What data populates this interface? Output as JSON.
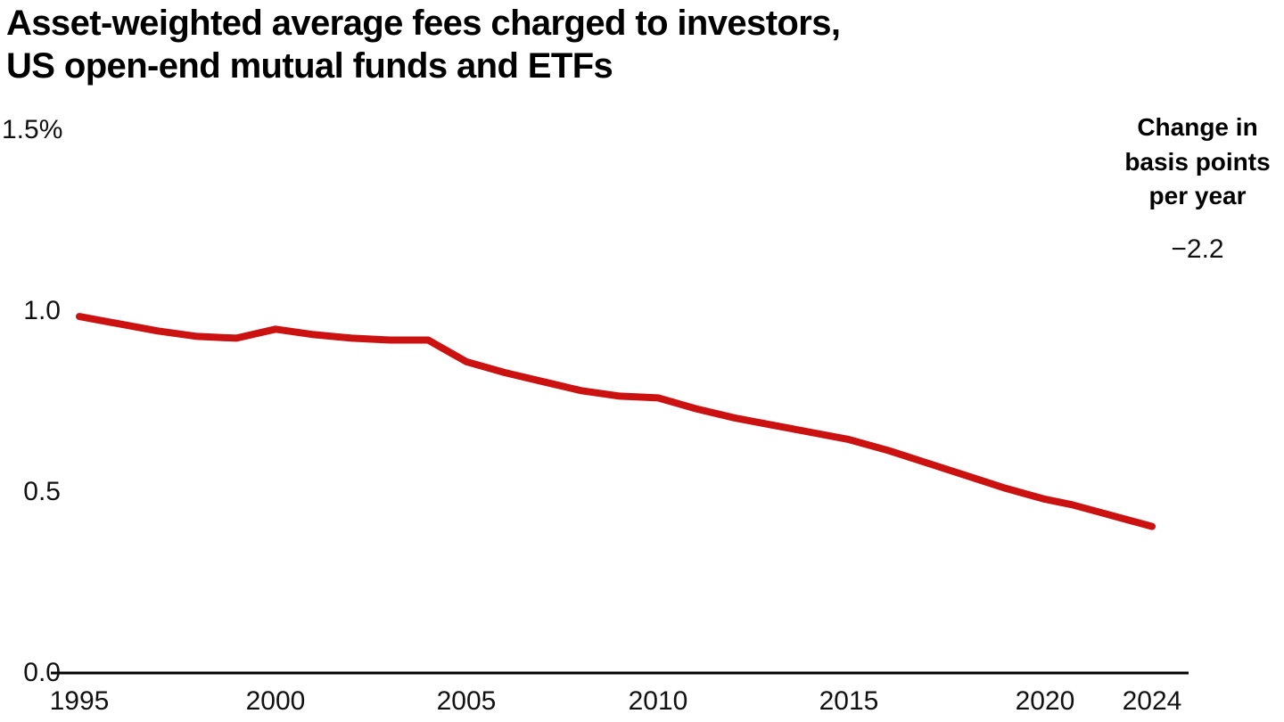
{
  "header": {
    "title": "Asset-weighted average fees charged to investors,\nUS open-end mutual funds and ETFs"
  },
  "annotation": {
    "heading": "Change in\nbasis points\nper year",
    "value": "−2.2"
  },
  "chart_data": {
    "type": "line",
    "title": "Asset-weighted average fees charged to investors, US open-end mutual funds and ETFs",
    "units": "% of assets",
    "xlim": [
      1995,
      2024
    ],
    "ylim": [
      0,
      1.5
    ],
    "grid": false,
    "legend_position": "none",
    "line_color": "#cc1111",
    "axis_color": "#000000",
    "x": [
      1995,
      1996,
      1997,
      1998,
      1999,
      2000,
      2001,
      2002,
      2003,
      2004,
      2005,
      2006,
      2007,
      2008,
      2009,
      2010,
      2011,
      2012,
      2013,
      2014,
      2015,
      2016,
      2017,
      2018,
      2019,
      2020,
      2021,
      2022,
      2023,
      2024
    ],
    "series": [
      {
        "name": "Asset-weighted average fee",
        "values": [
          0.985,
          0.965,
          0.945,
          0.93,
          0.925,
          0.95,
          0.935,
          0.925,
          0.92,
          0.92,
          0.86,
          0.83,
          0.805,
          0.78,
          0.765,
          0.76,
          0.73,
          0.705,
          0.685,
          0.665,
          0.645,
          0.615,
          0.58,
          0.545,
          0.51,
          0.48,
          0.465,
          0.445,
          0.425,
          0.405
        ]
      }
    ],
    "x_ticks": [
      {
        "year": 1995,
        "label": "1995"
      },
      {
        "year": 2000,
        "label": "2000"
      },
      {
        "year": 2005,
        "label": "2005"
      },
      {
        "year": 2010,
        "label": "2010"
      },
      {
        "year": 2015,
        "label": "2015"
      },
      {
        "year": 2020,
        "label": "2020"
      },
      {
        "year": 2024,
        "label": "2024"
      }
    ],
    "y_ticks": [
      {
        "value": 1.5,
        "label": "1.5%"
      },
      {
        "value": 1.0,
        "label": "1.0"
      },
      {
        "value": 0.5,
        "label": "0.5"
      },
      {
        "value": 0.0,
        "label": "0.0"
      }
    ],
    "annotation": {
      "label": "Change in basis points per year",
      "value": -2.2
    }
  }
}
